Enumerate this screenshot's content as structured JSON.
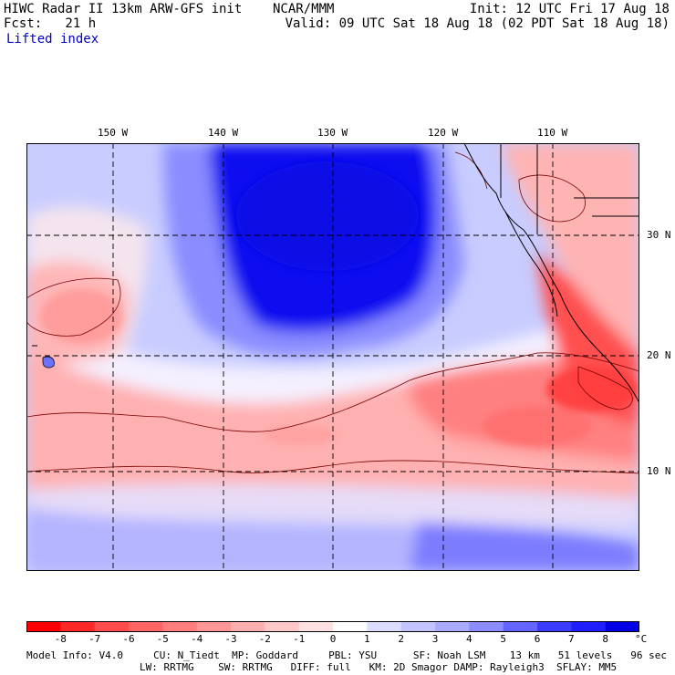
{
  "header": {
    "title": "HIWC Radar II 13km ARW-GFS init    NCAR/MMM",
    "init": "Init: 12 UTC Fri 17 Aug 18",
    "fcst": "Fcst:   21 h",
    "valid": "Valid: 09 UTC Sat 18 Aug 18 (02 PDT Sat 18 Aug 18)",
    "field": "Lifted index"
  },
  "map": {
    "lon_labels": [
      "150 W",
      "140 W",
      "130 W",
      "120 W",
      "110 W"
    ],
    "lat_labels": [
      "30 N",
      "20 N",
      "10 N"
    ]
  },
  "colorbar": {
    "ticks": [
      "-8",
      "-7",
      "-6",
      "-5",
      "-4",
      "-3",
      "-2",
      "-1",
      "0",
      "1",
      "2",
      "3",
      "4",
      "5",
      "6",
      "7",
      "8"
    ],
    "unit": "°C",
    "colors": [
      "#ff0000",
      "#ff2828",
      "#ff4b4b",
      "#ff6464",
      "#ff7d7d",
      "#ff9696",
      "#ffafaf",
      "#ffc8c8",
      "#ffe1e1",
      "#ffffff",
      "#dcdcff",
      "#c3c3ff",
      "#aaaaff",
      "#8c8cff",
      "#6464ff",
      "#3c3cff",
      "#1e1eff",
      "#0000e6"
    ]
  },
  "footer": {
    "line1": "Model Info: V4.0     CU: N_Tiedt  MP: Goddard     PBL: YSU      SF: Noah LSM    13 km   51 levels   96 sec",
    "line2": "LW: RRTMG    SW: RRTMG   DIFF: full   KM: 2D Smagor DAMP: Rayleigh3  SFLAY: MM5"
  }
}
